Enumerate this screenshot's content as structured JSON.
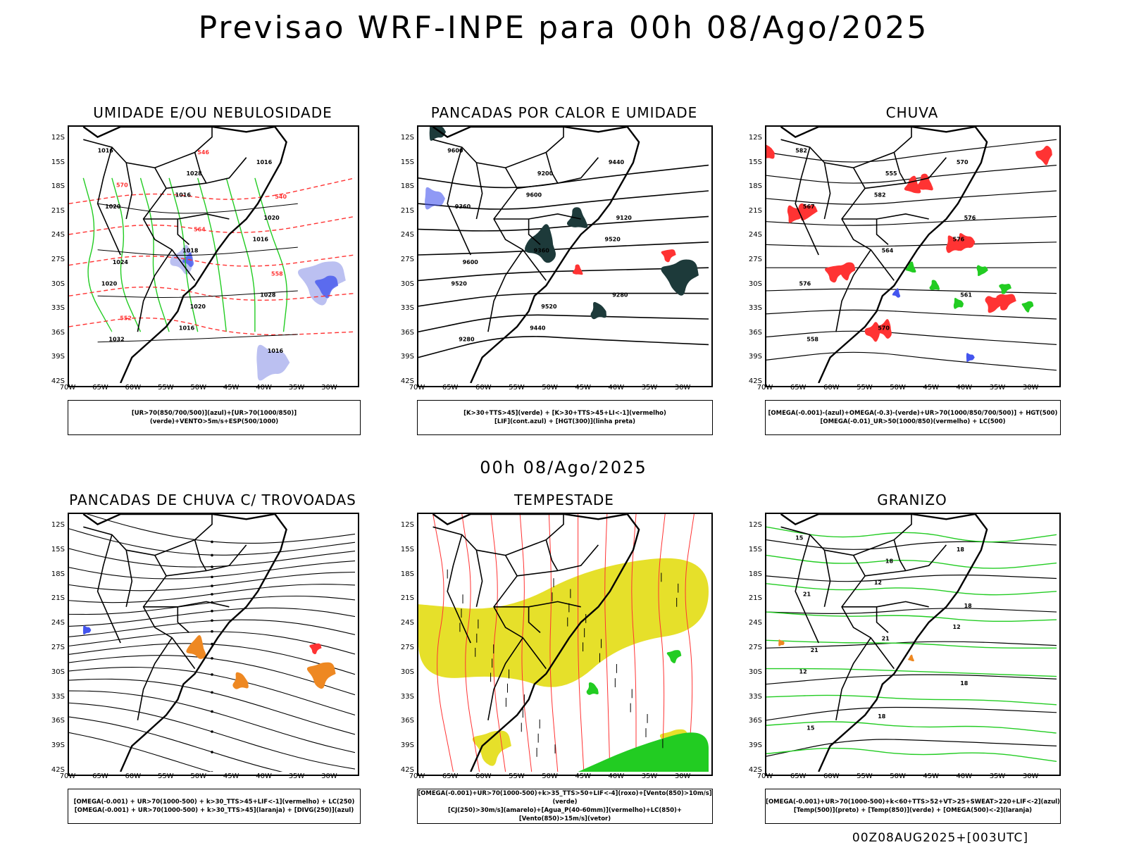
{
  "title": "Previsao WRF-INPE  para 00h 08/Ago/2025",
  "subtitle": "00h 08/Ago/2025",
  "footer": "00Z08AUG2025+[003UTC]",
  "lat_labels": [
    "12S",
    "15S",
    "18S",
    "21S",
    "24S",
    "27S",
    "30S",
    "33S",
    "36S",
    "39S",
    "42S"
  ],
  "lon_labels": [
    "70W",
    "65W",
    "60W",
    "55W",
    "50W",
    "45W",
    "40W",
    "35W",
    "30W"
  ],
  "colors": {
    "green": "#22cc22",
    "red": "#ff3333",
    "blue": "#4455ee",
    "lightblue": "#aab0ee",
    "darkteal": "#1d3a3a",
    "yellow": "#e6e02a",
    "orange": "#ee8822"
  },
  "panels": [
    {
      "title": "UMIDADE E/OU NEBULOSIDADE",
      "legend": [
        "[UR>70(850/700/500)](azul)+[UR>70(1000/850)](verde)+VENTO>5m/s+ESP(500/1000)"
      ],
      "labels": [
        "1016",
        "1016",
        "1016",
        "1020",
        "1016",
        "1016",
        "1020",
        "1018",
        "1028",
        "1032",
        "1028",
        "1020",
        "1024",
        "1020",
        "1016",
        "570",
        "564",
        "558",
        "552",
        "546",
        "540"
      ]
    },
    {
      "title": "PANCADAS POR CALOR E UMIDADE",
      "legend": [
        "[K>30+TTS>45](verde) + [K>30+TTS>45+LI<-1](vermelho)",
        "[LIF](cont.azul) + [HGT(300)](linha preta)"
      ],
      "labels": [
        "9600",
        "9600",
        "9520",
        "9520",
        "9440",
        "9440",
        "9360",
        "9360",
        "9280",
        "9280",
        "9200",
        "9120",
        "9600",
        "9520"
      ]
    },
    {
      "title": "CHUVA",
      "legend": [
        "[OMEGA(-0.001)-(azul)+OMEGA(-0.3)-(verde)+UR>70(1000/850/700/500)] + HGT(500)",
        "[OMEGA(-0.01)_UR>50(1000/850)(vermelho) + LC(500)"
      ],
      "labels": [
        "582",
        "582",
        "576",
        "576",
        "570",
        "570",
        "567",
        "564",
        "561",
        "558",
        "555",
        "576"
      ]
    },
    {
      "title": "PANCADAS DE CHUVA C/ TROVOADAS",
      "legend": [
        "[OMEGA(-0.001) + UR>70(1000-500) + k>30_TTS>45+LIF<-1](vermelho) + LC(250)",
        "[OMEGA(-0.001) + UR>70(1000-500) + k>30_TTS>45](laranja) + [DIVG(250)](azul)"
      ],
      "labels": []
    },
    {
      "title": "TEMPESTADE",
      "legend": [
        "[OMEGA(-0.001)+UR>70(1000-500)+k>35_TTS>50+LIF<-4](roxo)+[Vento(850)>10m/s](verde)",
        "[CJ(250)>30m/s](amarelo)+[Agua_P(40-60mm)](vermelho)+LC(850)+[Vento(850)>15m/s](vetor)"
      ],
      "labels": []
    },
    {
      "title": "GRANIZO",
      "legend": [
        "[OMEGA(-0.001)+UR>70(1000-500)+k<60+TTS>52+VT>25+SWEAT>220+LIF<-2](azul)",
        "[Temp(500)](preto) + [Temp(850)](verde) + [OMEGA(500)<-2](laranja)"
      ],
      "labels": [
        "15",
        "12",
        "12",
        "12",
        "18",
        "18",
        "21",
        "21",
        "18",
        "15",
        "18",
        "18",
        "21"
      ]
    }
  ]
}
